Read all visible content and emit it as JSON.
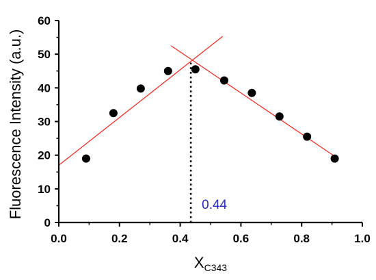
{
  "chart_data": {
    "type": "scatter",
    "title": "",
    "xlabel_main": "X",
    "xlabel_sub": "C343",
    "ylabel": "Fluorescence Intensity (a.u.)",
    "xlim": [
      0.0,
      1.0
    ],
    "ylim": [
      0,
      60
    ],
    "x_ticks": [
      "0.0",
      "0.2",
      "0.4",
      "0.6",
      "0.8",
      "1.0"
    ],
    "y_ticks": [
      "0",
      "10",
      "20",
      "30",
      "40",
      "50",
      "60"
    ],
    "grid": false,
    "legend": "none",
    "point_color": "#000000",
    "fit_line_color": "#e8302a",
    "annotation_color": "#2b2bb8",
    "series": [
      {
        "x": [
          0.09,
          0.18,
          0.27,
          0.36,
          0.45,
          0.545,
          0.636,
          0.727,
          0.818,
          0.909
        ],
        "y": [
          19,
          32.5,
          39.8,
          45,
          45.5,
          42.2,
          38.5,
          31.5,
          25.5,
          19
        ]
      }
    ],
    "fit_lines": [
      {
        "x": [
          0.0,
          0.54
        ],
        "y": [
          17,
          55.3
        ]
      },
      {
        "x": [
          0.37,
          0.91
        ],
        "y": [
          52.5,
          19.6
        ]
      }
    ],
    "intersection": {
      "x": 0.435,
      "y": 47.5
    },
    "annotation": {
      "text": "0.44"
    }
  }
}
